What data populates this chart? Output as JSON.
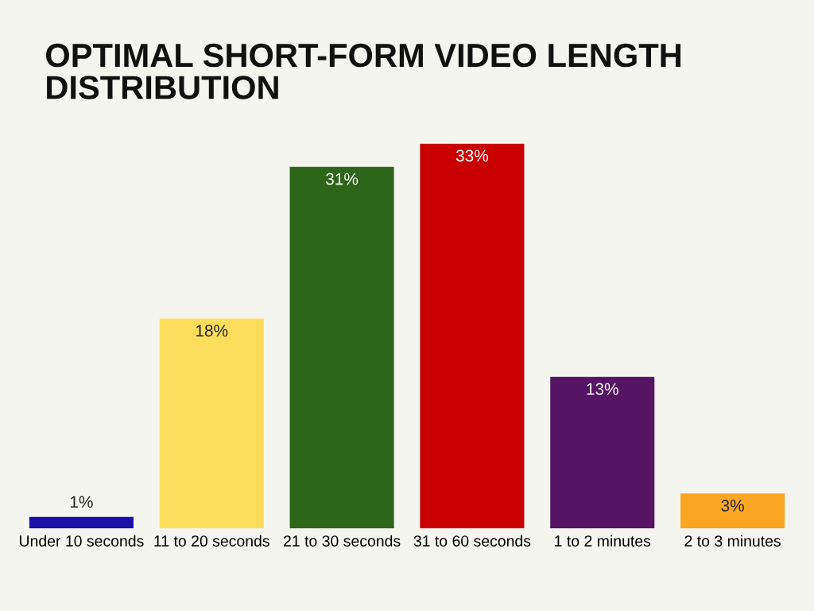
{
  "chart_data": {
    "type": "bar",
    "title": "OPTIMAL SHORT-FORM VIDEO LENGTH\nDISTRIBUTION",
    "categories": [
      "Under 10 seconds",
      "11 to 20 seconds",
      "21 to 30 seconds",
      "31 to 60 seconds",
      "1 to 2 minutes",
      "2 to 3 minutes"
    ],
    "values": [
      1,
      18,
      31,
      33,
      13,
      3
    ],
    "colors": [
      "#1a0fa8",
      "#fedd5c",
      "#2d6519",
      "#c80000",
      "#561465",
      "#fba623"
    ],
    "value_labels": [
      "1%",
      "18%",
      "31%",
      "33%",
      "13%",
      "3%"
    ],
    "grid": false,
    "legend": false
  }
}
